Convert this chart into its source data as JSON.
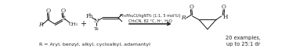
{
  "background_color": "#ffffff",
  "fig_width": 3.78,
  "fig_height": 0.71,
  "dpi": 100,
  "reagent_line1": "Ph₃PAuCl/AgNTf₂ (1:1, 5 mol%l)",
  "reagent_line2": "CH₃CN, 82 °C, H⁺, H₂O",
  "bottom_text": "R = Aryl, benzyl, alkyl, cycloalkyl, adamantyl",
  "examples_line1": "20 examples,",
  "examples_line2": "up to 25:1 dr",
  "text_color": "#222222",
  "arrow_color": "#222222",
  "line_color": "#222222",
  "lw": 0.75
}
